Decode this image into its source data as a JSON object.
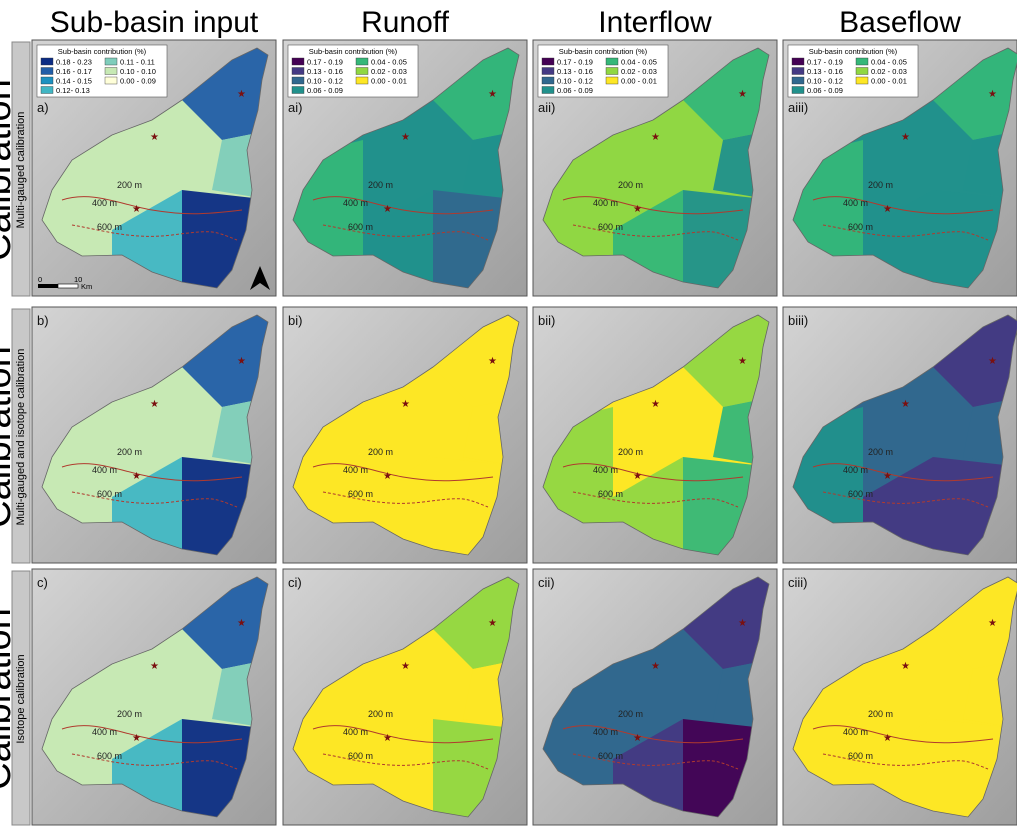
{
  "column_headers": [
    "Sub-basin input",
    "Runoff",
    "Interflow",
    "Baseflow"
  ],
  "rows": [
    {
      "side_label": "Calibration",
      "label": "Multi-gauged calibration",
      "panels": [
        "a)",
        "ai)",
        "aii)",
        "aiii)"
      ]
    },
    {
      "side_label": "Calibration",
      "label": "Multi-gauged and isotope calibration",
      "panels": [
        "b)",
        "bi)",
        "bii)",
        "biii)"
      ]
    },
    {
      "side_label": "Calibration",
      "label": "Isotope calibration",
      "panels": [
        "c)",
        "ci)",
        "cii)",
        "ciii)"
      ]
    }
  ],
  "legend_title": "Sub-basin contribution (%)",
  "legends": {
    "input": [
      {
        "label": "0.18 - 0.23",
        "color": "#0c2c84"
      },
      {
        "label": "0.16 - 0.17",
        "color": "#225ea8"
      },
      {
        "label": "0.14 - 0.15",
        "color": "#1d91c0"
      },
      {
        "label": "0.12- 0.13",
        "color": "#41b6c4"
      },
      {
        "label": "0.11 - 0.11",
        "color": "#7fcdbb"
      },
      {
        "label": "0.10 - 0.10",
        "color": "#c7e9b4"
      },
      {
        "label": "0.00 - 0.09",
        "color": "#ffffd9"
      }
    ],
    "flow": [
      {
        "label": "0.17 - 0.19",
        "color": "#440154"
      },
      {
        "label": "0.13 - 0.16",
        "color": "#443983"
      },
      {
        "label": "0.10 - 0.12",
        "color": "#31688e"
      },
      {
        "label": "0.06 - 0.09",
        "color": "#21918c"
      },
      {
        "label": "0.04 - 0.05",
        "color": "#35b779"
      },
      {
        "label": "0.02 - 0.03",
        "color": "#90d743"
      },
      {
        "label": "0.00 - 0.01",
        "color": "#fde725"
      }
    ]
  },
  "map_labels": [
    "200 m",
    "400 m",
    "600 m"
  ],
  "scale_bar": [
    "0",
    "10",
    "Km"
  ]
}
